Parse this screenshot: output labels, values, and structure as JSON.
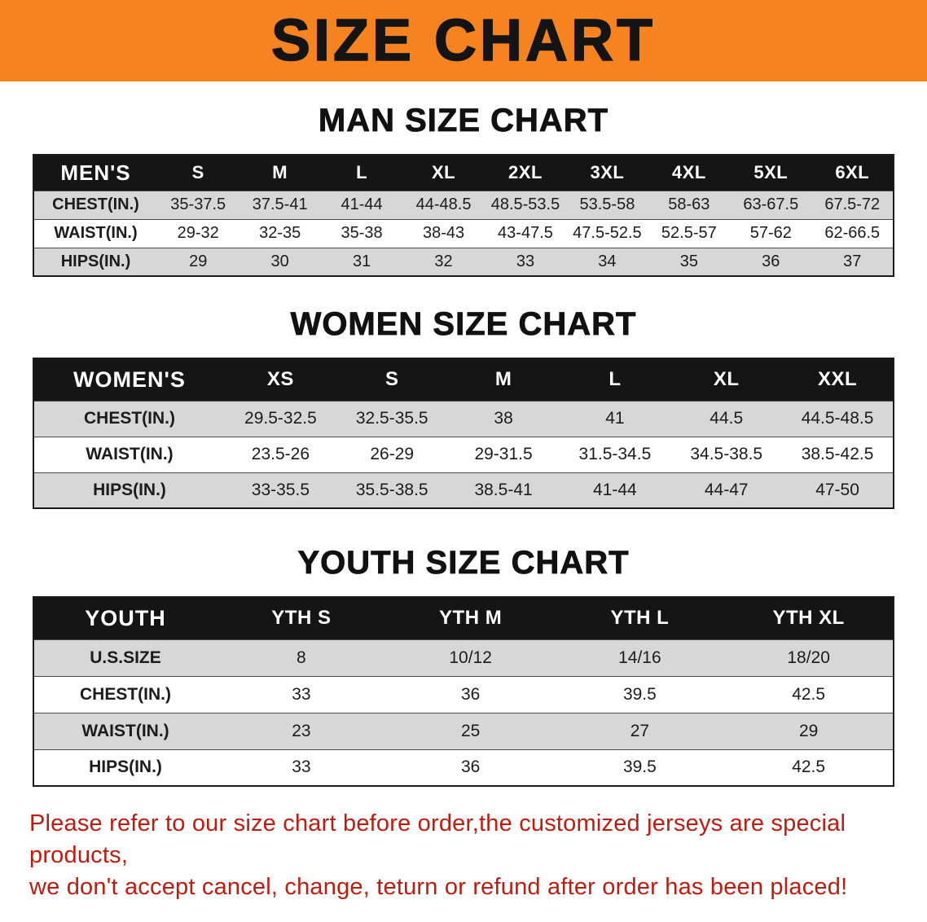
{
  "banner": {
    "title": "SIZE CHART"
  },
  "colors": {
    "banner_bg": "#f5831f",
    "banner_text": "#141414",
    "header_bg": "#151515",
    "header_text": "#ffffff",
    "row_alt": "#d7d7d7",
    "note_text": "#c11b0f"
  },
  "sections": [
    {
      "heading": "MAN SIZE CHART",
      "table": {
        "header": [
          "MEN'S",
          "S",
          "M",
          "L",
          "XL",
          "2XL",
          "3XL",
          "4XL",
          "5XL",
          "6XL"
        ],
        "rows": [
          {
            "label": "CHEST(IN.)",
            "values": [
              "35-37.5",
              "37.5-41",
              "41-44",
              "44-48.5",
              "48.5-53.5",
              "53.5-58",
              "58-63",
              "63-67.5",
              "67.5-72"
            ]
          },
          {
            "label": "WAIST(IN.)",
            "values": [
              "29-32",
              "32-35",
              "35-38",
              "38-43",
              "43-47.5",
              "47.5-52.5",
              "52.5-57",
              "57-62",
              "62-66.5"
            ]
          },
          {
            "label": "HIPS(IN.)",
            "values": [
              "29",
              "30",
              "31",
              "32",
              "33",
              "34",
              "35",
              "36",
              "37"
            ]
          }
        ]
      }
    },
    {
      "heading": "WOMEN SIZE CHART",
      "table": {
        "header": [
          "WOMEN'S",
          "XS",
          "S",
          "M",
          "L",
          "XL",
          "XXL"
        ],
        "rows": [
          {
            "label": "CHEST(IN.)",
            "values": [
              "29.5-32.5",
              "32.5-35.5",
              "38",
              "41",
              "44.5",
              "44.5-48.5"
            ]
          },
          {
            "label": "WAIST(IN.)",
            "values": [
              "23.5-26",
              "26-29",
              "29-31.5",
              "31.5-34.5",
              "34.5-38.5",
              "38.5-42.5"
            ]
          },
          {
            "label": "HIPS(IN.)",
            "values": [
              "33-35.5",
              "35.5-38.5",
              "38.5-41",
              "41-44",
              "44-47",
              "47-50"
            ]
          }
        ]
      }
    },
    {
      "heading": "YOUTH SIZE CHART",
      "table": {
        "header": [
          "YOUTH",
          "YTH S",
          "YTH M",
          "YTH L",
          "YTH XL"
        ],
        "rows": [
          {
            "label": "U.S.SIZE",
            "values": [
              "8",
              "10/12",
              "14/16",
              "18/20"
            ]
          },
          {
            "label": "CHEST(IN.)",
            "values": [
              "33",
              "36",
              "39.5",
              "42.5"
            ]
          },
          {
            "label": "WAIST(IN.)",
            "values": [
              "23",
              "25",
              "27",
              "29"
            ]
          },
          {
            "label": "HIPS(IN.)",
            "values": [
              "33",
              "36",
              "39.5",
              "42.5"
            ]
          }
        ]
      }
    }
  ],
  "footer": {
    "line1": "Please refer to our size chart before order,the customized jerseys are special products,",
    "line2": "we don't accept cancel, change, teturn or refund after order has been placed!"
  }
}
